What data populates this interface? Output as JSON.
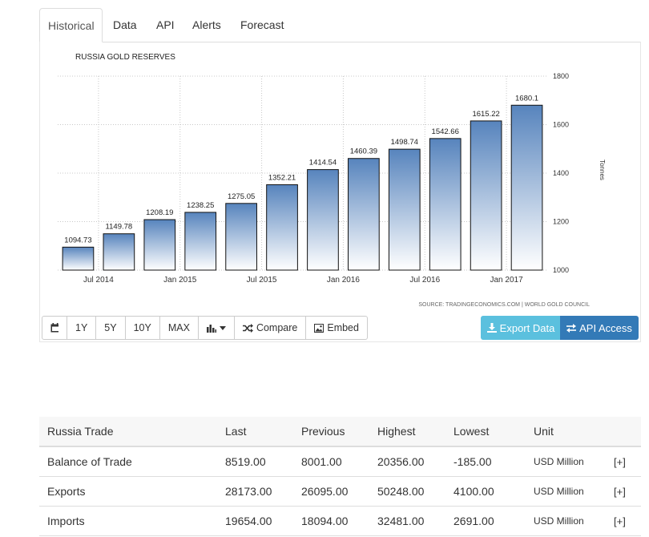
{
  "tabs": [
    "Historical",
    "Data",
    "API",
    "Alerts",
    "Forecast"
  ],
  "chart_data": {
    "type": "bar",
    "title": "RUSSIA GOLD RESERVES",
    "ylabel": "Tonnes",
    "source": "SOURCE: TRADINGECONOMICS.COM  |  WORLD GOLD COUNCIL",
    "values": [
      1094.73,
      1149.78,
      1208.19,
      1238.25,
      1275.05,
      1352.21,
      1414.54,
      1460.39,
      1498.74,
      1542.66,
      1615.22,
      1680.1
    ],
    "value_labels": [
      "1094.73",
      "1149.78",
      "1208.19",
      "1238.25",
      "1275.05",
      "1352.21",
      "1414.54",
      "1460.39",
      "1498.74",
      "1542.66",
      "1615.22",
      "1680.1"
    ],
    "x_ticks": [
      "Jul 2014",
      "Jan 2015",
      "Jul 2015",
      "Jan 2016",
      "Jul 2016",
      "Jan 2017"
    ],
    "y_ticks": [
      1000,
      1200,
      1400,
      1600,
      1800
    ],
    "ylim": [
      1000,
      1800
    ],
    "grid": true,
    "bar_color_top": "#5784bd",
    "bar_color_bottom": "#ffffff"
  },
  "toolbar": {
    "calendar_icon": "calendar-icon",
    "buttons": [
      "1Y",
      "5Y",
      "10Y",
      "MAX"
    ],
    "chart_type_icon": "bar-chart-icon",
    "compare": "Compare",
    "embed": "Embed"
  },
  "export": {
    "label": "Export Data",
    "icon": "download-icon",
    "color": "#5bc0de"
  },
  "api_access": {
    "label": "API Access",
    "icon": "exchange-icon",
    "color": "#337ab7"
  },
  "trade_table": {
    "headers": [
      "Russia Trade",
      "Last",
      "Previous",
      "Highest",
      "Lowest",
      "Unit"
    ],
    "rows": [
      [
        "Balance of Trade",
        "8519.00",
        "8001.00",
        "20356.00",
        "-185.00",
        "USD Million",
        "[+]"
      ],
      [
        "Exports",
        "28173.00",
        "26095.00",
        "50248.00",
        "4100.00",
        "USD Million",
        "[+]"
      ],
      [
        "Imports",
        "19654.00",
        "18094.00",
        "32481.00",
        "2691.00",
        "USD Million",
        "[+]"
      ]
    ]
  }
}
